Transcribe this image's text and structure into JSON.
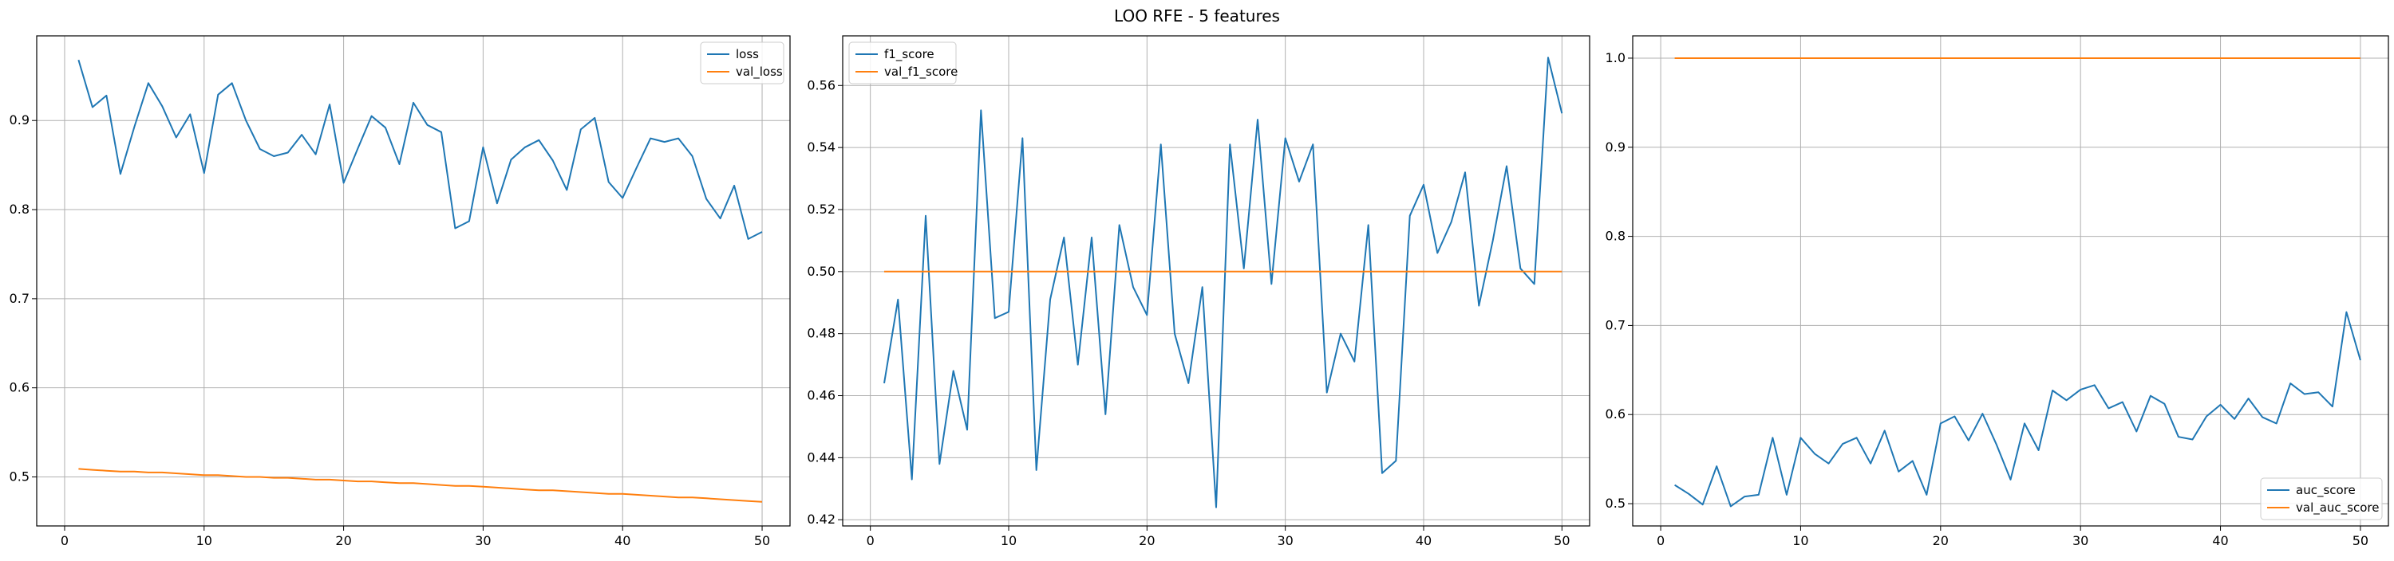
{
  "figure_title": "LOO RFE - 5 features",
  "colors": {
    "series1": "#1f77b4",
    "series2": "#ff7f0e",
    "grid": "#b0b0b0",
    "axis": "#000000"
  },
  "chart_data": [
    {
      "type": "line",
      "title": "",
      "xlabel": "",
      "ylabel": "",
      "xlim": [
        -2,
        52
      ],
      "ylim": [
        0.445,
        0.995
      ],
      "xticks": [
        0,
        10,
        20,
        30,
        40,
        50
      ],
      "xtick_labels": [
        "0",
        "10",
        "20",
        "30",
        "40",
        "50"
      ],
      "yticks": [
        0.5,
        0.6,
        0.7,
        0.8,
        0.9
      ],
      "ytick_labels": [
        "0.5",
        "0.6",
        "0.7",
        "0.8",
        "0.9"
      ],
      "grid": true,
      "legend_position": "top-right",
      "x": [
        1,
        2,
        3,
        4,
        5,
        6,
        7,
        8,
        9,
        10,
        11,
        12,
        13,
        14,
        15,
        16,
        17,
        18,
        19,
        20,
        21,
        22,
        23,
        24,
        25,
        26,
        27,
        28,
        29,
        30,
        31,
        32,
        33,
        34,
        35,
        36,
        37,
        38,
        39,
        40,
        41,
        42,
        43,
        44,
        45,
        46,
        47,
        48,
        49,
        50
      ],
      "series": [
        {
          "name": "loss",
          "color": "#1f77b4",
          "values": [
            0.968,
            0.915,
            0.928,
            0.84,
            0.893,
            0.942,
            0.916,
            0.881,
            0.907,
            0.841,
            0.929,
            0.942,
            0.9,
            0.868,
            0.86,
            0.864,
            0.884,
            0.862,
            0.918,
            0.83,
            0.868,
            0.905,
            0.892,
            0.851,
            0.92,
            0.895,
            0.887,
            0.779,
            0.787,
            0.87,
            0.807,
            0.856,
            0.87,
            0.878,
            0.855,
            0.822,
            0.89,
            0.903,
            0.831,
            0.813,
            0.847,
            0.88,
            0.876,
            0.88,
            0.86,
            0.812,
            0.79,
            0.827,
            0.767,
            0.775
          ]
        },
        {
          "name": "val_loss",
          "color": "#ff7f0e",
          "values": [
            0.509,
            0.508,
            0.507,
            0.506,
            0.506,
            0.505,
            0.505,
            0.504,
            0.503,
            0.502,
            0.502,
            0.501,
            0.5,
            0.5,
            0.499,
            0.499,
            0.498,
            0.497,
            0.497,
            0.496,
            0.495,
            0.495,
            0.494,
            0.493,
            0.493,
            0.492,
            0.491,
            0.49,
            0.49,
            0.489,
            0.488,
            0.487,
            0.486,
            0.485,
            0.485,
            0.484,
            0.483,
            0.482,
            0.481,
            0.481,
            0.48,
            0.479,
            0.478,
            0.477,
            0.477,
            0.476,
            0.475,
            0.474,
            0.473,
            0.472
          ]
        }
      ]
    },
    {
      "type": "line",
      "title": "",
      "xlabel": "",
      "ylabel": "",
      "xlim": [
        -2,
        52
      ],
      "ylim": [
        0.418,
        0.576
      ],
      "xticks": [
        0,
        10,
        20,
        30,
        40,
        50
      ],
      "xtick_labels": [
        "0",
        "10",
        "20",
        "30",
        "40",
        "50"
      ],
      "yticks": [
        0.42,
        0.44,
        0.46,
        0.48,
        0.5,
        0.52,
        0.54,
        0.56
      ],
      "ytick_labels": [
        "0.42",
        "0.44",
        "0.46",
        "0.48",
        "0.50",
        "0.52",
        "0.54",
        "0.56"
      ],
      "grid": true,
      "legend_position": "top-left",
      "x": [
        1,
        2,
        3,
        4,
        5,
        6,
        7,
        8,
        9,
        10,
        11,
        12,
        13,
        14,
        15,
        16,
        17,
        18,
        19,
        20,
        21,
        22,
        23,
        24,
        25,
        26,
        27,
        28,
        29,
        30,
        31,
        32,
        33,
        34,
        35,
        36,
        37,
        38,
        39,
        40,
        41,
        42,
        43,
        44,
        45,
        46,
        47,
        48,
        49,
        50
      ],
      "series": [
        {
          "name": "f1_score",
          "color": "#1f77b4",
          "values": [
            0.464,
            0.491,
            0.433,
            0.518,
            0.438,
            0.468,
            0.449,
            0.552,
            0.485,
            0.487,
            0.543,
            0.436,
            0.491,
            0.511,
            0.47,
            0.511,
            0.454,
            0.515,
            0.495,
            0.486,
            0.541,
            0.48,
            0.464,
            0.495,
            0.424,
            0.541,
            0.501,
            0.549,
            0.496,
            0.543,
            0.529,
            0.541,
            0.461,
            0.48,
            0.471,
            0.515,
            0.435,
            0.439,
            0.518,
            0.528,
            0.506,
            0.516,
            0.532,
            0.489,
            0.51,
            0.534,
            0.501,
            0.496,
            0.569,
            0.551
          ]
        },
        {
          "name": "val_f1_score",
          "color": "#ff7f0e",
          "values": [
            0.5,
            0.5,
            0.5,
            0.5,
            0.5,
            0.5,
            0.5,
            0.5,
            0.5,
            0.5,
            0.5,
            0.5,
            0.5,
            0.5,
            0.5,
            0.5,
            0.5,
            0.5,
            0.5,
            0.5,
            0.5,
            0.5,
            0.5,
            0.5,
            0.5,
            0.5,
            0.5,
            0.5,
            0.5,
            0.5,
            0.5,
            0.5,
            0.5,
            0.5,
            0.5,
            0.5,
            0.5,
            0.5,
            0.5,
            0.5,
            0.5,
            0.5,
            0.5,
            0.5,
            0.5,
            0.5,
            0.5,
            0.5,
            0.5,
            0.5
          ]
        }
      ]
    },
    {
      "type": "line",
      "title": "",
      "xlabel": "",
      "ylabel": "",
      "xlim": [
        -2,
        52
      ],
      "ylim": [
        0.475,
        1.025
      ],
      "xticks": [
        0,
        10,
        20,
        30,
        40,
        50
      ],
      "xtick_labels": [
        "0",
        "10",
        "20",
        "30",
        "40",
        "50"
      ],
      "yticks": [
        0.5,
        0.6,
        0.7,
        0.8,
        0.9,
        1.0
      ],
      "ytick_labels": [
        "0.5",
        "0.6",
        "0.7",
        "0.8",
        "0.9",
        "1.0"
      ],
      "grid": true,
      "legend_position": "bottom-right",
      "x": [
        1,
        2,
        3,
        4,
        5,
        6,
        7,
        8,
        9,
        10,
        11,
        12,
        13,
        14,
        15,
        16,
        17,
        18,
        19,
        20,
        21,
        22,
        23,
        24,
        25,
        26,
        27,
        28,
        29,
        30,
        31,
        32,
        33,
        34,
        35,
        36,
        37,
        38,
        39,
        40,
        41,
        42,
        43,
        44,
        45,
        46,
        47,
        48,
        49,
        50
      ],
      "series": [
        {
          "name": "auc_score",
          "color": "#1f77b4",
          "values": [
            0.521,
            0.511,
            0.499,
            0.542,
            0.497,
            0.508,
            0.51,
            0.574,
            0.51,
            0.574,
            0.556,
            0.545,
            0.567,
            0.574,
            0.545,
            0.582,
            0.536,
            0.548,
            0.51,
            0.59,
            0.598,
            0.571,
            0.601,
            0.566,
            0.527,
            0.59,
            0.56,
            0.627,
            0.616,
            0.628,
            0.633,
            0.607,
            0.614,
            0.581,
            0.621,
            0.612,
            0.575,
            0.572,
            0.598,
            0.611,
            0.595,
            0.618,
            0.597,
            0.59,
            0.635,
            0.623,
            0.625,
            0.609,
            0.715,
            0.661
          ]
        },
        {
          "name": "val_auc_score",
          "color": "#ff7f0e",
          "values": [
            1.0,
            1.0,
            1.0,
            1.0,
            1.0,
            1.0,
            1.0,
            1.0,
            1.0,
            1.0,
            1.0,
            1.0,
            1.0,
            1.0,
            1.0,
            1.0,
            1.0,
            1.0,
            1.0,
            1.0,
            1.0,
            1.0,
            1.0,
            1.0,
            1.0,
            1.0,
            1.0,
            1.0,
            1.0,
            1.0,
            1.0,
            1.0,
            1.0,
            1.0,
            1.0,
            1.0,
            1.0,
            1.0,
            1.0,
            1.0,
            1.0,
            1.0,
            1.0,
            1.0,
            1.0,
            1.0,
            1.0,
            1.0,
            1.0,
            1.0
          ]
        }
      ]
    }
  ]
}
